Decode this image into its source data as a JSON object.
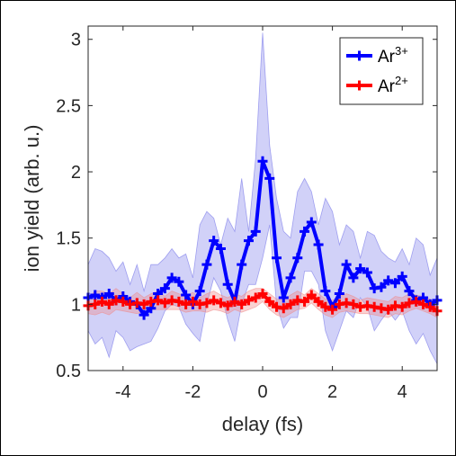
{
  "chart_data": {
    "type": "line",
    "xlabel": "delay (fs)",
    "ylabel": "ion yield (arb. u.)",
    "xlim": [
      -5,
      5
    ],
    "ylim": [
      0.5,
      3.1
    ],
    "xticks": [
      -4,
      -2,
      0,
      2,
      4
    ],
    "yticks": [
      0.5,
      1,
      1.5,
      2,
      2.5,
      3
    ],
    "xtick_labels": [
      "-4",
      "-2",
      "0",
      "2",
      "4"
    ],
    "ytick_labels": [
      "0.5",
      "1",
      "1.5",
      "2",
      "2.5",
      "3"
    ],
    "legend_position": "top-right",
    "series": [
      {
        "name_base": "Ar",
        "name_sup": "3+",
        "color": "#0000ff",
        "band_color": "#7070e8",
        "x": [
          -5.0,
          -4.8,
          -4.6,
          -4.4,
          -4.2,
          -4.0,
          -3.8,
          -3.6,
          -3.4,
          -3.2,
          -3.0,
          -2.8,
          -2.6,
          -2.4,
          -2.2,
          -2.0,
          -1.8,
          -1.6,
          -1.4,
          -1.2,
          -1.0,
          -0.8,
          -0.6,
          -0.4,
          -0.2,
          0.0,
          0.2,
          0.4,
          0.6,
          0.8,
          1.0,
          1.2,
          1.4,
          1.6,
          1.8,
          2.0,
          2.2,
          2.4,
          2.6,
          2.8,
          3.0,
          3.2,
          3.4,
          3.6,
          3.8,
          4.0,
          4.2,
          4.4,
          4.6,
          4.8,
          5.0
        ],
        "values": [
          1.05,
          1.07,
          1.05,
          1.08,
          1.03,
          1.06,
          1.02,
          1.0,
          0.92,
          0.97,
          1.08,
          1.12,
          1.2,
          1.17,
          1.07,
          1.0,
          1.1,
          1.3,
          1.48,
          1.42,
          1.15,
          1.02,
          1.3,
          1.48,
          1.55,
          2.08,
          1.95,
          1.35,
          1.05,
          1.2,
          1.35,
          1.55,
          1.62,
          1.45,
          1.1,
          0.98,
          1.08,
          1.3,
          1.2,
          1.27,
          1.24,
          1.12,
          1.13,
          1.18,
          1.16,
          1.21,
          1.1,
          1.03,
          1.05,
          1.0,
          1.03
        ],
        "upper": [
          1.3,
          1.42,
          1.4,
          1.35,
          1.25,
          1.32,
          1.15,
          1.3,
          1.1,
          1.3,
          1.3,
          1.35,
          1.42,
          1.35,
          1.38,
          1.2,
          1.6,
          1.7,
          1.65,
          1.45,
          1.65,
          1.55,
          1.95,
          1.55,
          2.1,
          3.05,
          2.2,
          1.8,
          1.55,
          1.5,
          1.85,
          1.95,
          1.85,
          1.6,
          1.8,
          1.7,
          1.45,
          1.6,
          1.55,
          1.35,
          1.55,
          1.52,
          1.4,
          1.35,
          1.32,
          1.42,
          1.3,
          1.5,
          1.45,
          1.22,
          1.35
        ],
        "lower": [
          0.8,
          0.7,
          0.75,
          0.6,
          0.8,
          0.75,
          0.65,
          0.68,
          0.7,
          0.72,
          0.82,
          0.95,
          1.0,
          0.98,
          0.85,
          0.78,
          0.72,
          1.0,
          1.2,
          1.1,
          0.88,
          0.72,
          1.0,
          1.15,
          1.15,
          1.35,
          1.6,
          1.0,
          0.82,
          0.9,
          0.9,
          1.25,
          1.25,
          1.15,
          0.8,
          0.65,
          0.8,
          0.95,
          0.9,
          1.05,
          0.98,
          0.8,
          0.88,
          0.95,
          0.88,
          0.95,
          0.8,
          0.7,
          0.78,
          0.65,
          0.55
        ]
      },
      {
        "name_base": "Ar",
        "name_sup": "2+",
        "color": "#ff0000",
        "band_color": "#f08a8a",
        "x": [
          -5.0,
          -4.8,
          -4.6,
          -4.4,
          -4.2,
          -4.0,
          -3.8,
          -3.6,
          -3.4,
          -3.2,
          -3.0,
          -2.8,
          -2.6,
          -2.4,
          -2.2,
          -2.0,
          -1.8,
          -1.6,
          -1.4,
          -1.2,
          -1.0,
          -0.8,
          -0.6,
          -0.4,
          -0.2,
          0.0,
          0.2,
          0.4,
          0.6,
          0.8,
          1.0,
          1.2,
          1.4,
          1.6,
          1.8,
          2.0,
          2.2,
          2.4,
          2.6,
          2.8,
          3.0,
          3.2,
          3.4,
          3.6,
          3.8,
          4.0,
          4.2,
          4.4,
          4.6,
          4.8,
          5.0
        ],
        "values": [
          0.99,
          1.0,
          1.02,
          1.0,
          1.03,
          1.02,
          1.0,
          1.01,
          1.0,
          1.02,
          1.03,
          1.01,
          1.03,
          1.02,
          1.0,
          1.02,
          1.0,
          1.01,
          1.03,
          1.01,
          0.99,
          1.02,
          1.0,
          1.03,
          1.05,
          1.08,
          1.02,
          0.98,
          0.97,
          1.0,
          1.03,
          1.02,
          1.07,
          1.02,
          0.98,
          0.96,
          1.0,
          1.01,
          1.0,
          0.98,
          0.99,
          0.98,
          0.97,
          0.96,
          0.99,
          0.98,
          1.01,
          1.02,
          1.0,
          0.98,
          0.95
        ],
        "upper": [
          1.05,
          1.1,
          1.1,
          1.08,
          1.12,
          1.08,
          1.05,
          1.09,
          1.05,
          1.08,
          1.1,
          1.06,
          1.1,
          1.08,
          1.06,
          1.09,
          1.05,
          1.08,
          1.1,
          1.07,
          1.05,
          1.08,
          1.06,
          1.1,
          1.12,
          1.12,
          1.08,
          1.04,
          1.03,
          1.07,
          1.1,
          1.07,
          1.12,
          1.08,
          1.04,
          1.03,
          1.06,
          1.08,
          1.06,
          1.03,
          1.05,
          1.04,
          1.03,
          1.02,
          1.06,
          1.05,
          1.08,
          1.07,
          1.06,
          1.04,
          1.0
        ],
        "lower": [
          0.93,
          0.92,
          0.94,
          0.92,
          0.96,
          0.95,
          0.94,
          0.93,
          0.95,
          0.96,
          0.96,
          0.96,
          0.96,
          0.96,
          0.94,
          0.95,
          0.95,
          0.94,
          0.96,
          0.95,
          0.93,
          0.96,
          0.94,
          0.96,
          0.98,
          1.02,
          0.96,
          0.92,
          0.9,
          0.93,
          0.96,
          0.97,
          1.01,
          0.96,
          0.92,
          0.9,
          0.94,
          0.95,
          0.94,
          0.93,
          0.93,
          0.92,
          0.91,
          0.9,
          0.93,
          0.92,
          0.95,
          0.97,
          0.95,
          0.93,
          0.9
        ]
      }
    ]
  }
}
